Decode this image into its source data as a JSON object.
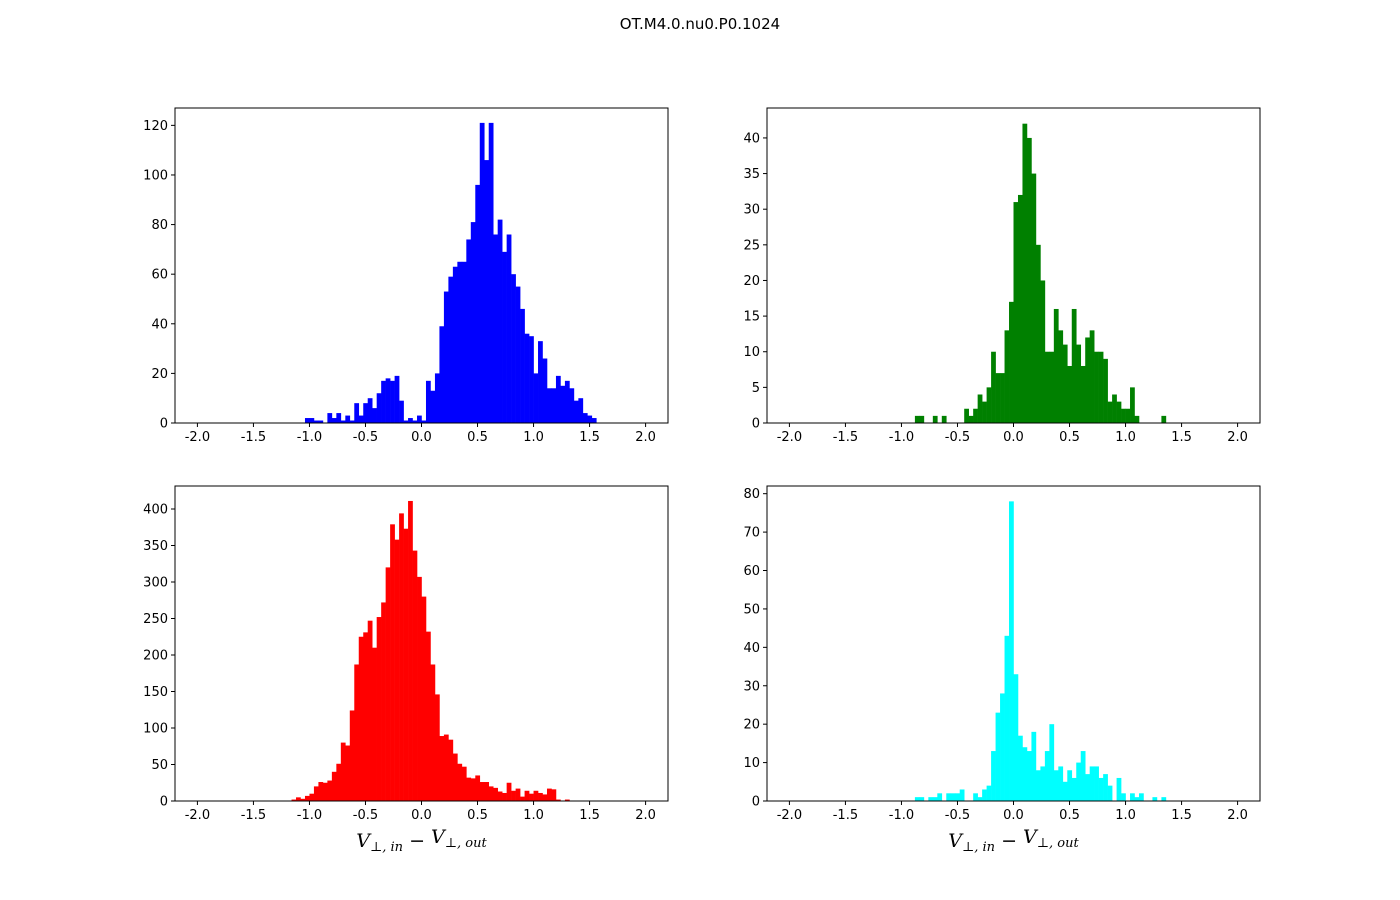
{
  "chart_data": [
    {
      "type": "bar",
      "subtype": "histogram",
      "position": "top-left",
      "color": "#0000ff",
      "bin_width": 0.04,
      "first_bin_left": -1.04,
      "counts": [
        2,
        2,
        1,
        1,
        0,
        4,
        2,
        4,
        1,
        3,
        1,
        8,
        3,
        8,
        10,
        6,
        12,
        17,
        18,
        17,
        19,
        9,
        1,
        2,
        1,
        3,
        1,
        17,
        13,
        20,
        39,
        53,
        59,
        63,
        65,
        65,
        74,
        81,
        96,
        121,
        106,
        121,
        76,
        82,
        69,
        76,
        60,
        55,
        46,
        36,
        35,
        20,
        33,
        26,
        14,
        14,
        19,
        15,
        17,
        14,
        9,
        10,
        4,
        3,
        2
      ],
      "xlim": [
        -2.2,
        2.2
      ],
      "ylim": [
        0,
        127
      ],
      "xticks": [
        "-2.0",
        "-1.5",
        "-1.0",
        "-0.5",
        "0.0",
        "0.5",
        "1.0",
        "1.5",
        "2.0"
      ],
      "yticks": [
        "0",
        "20",
        "40",
        "60",
        "80",
        "100",
        "120"
      ],
      "xlabel": ""
    },
    {
      "type": "bar",
      "subtype": "histogram",
      "position": "top-right",
      "color": "#008000",
      "bin_width": 0.04,
      "first_bin_left": -0.88,
      "counts": [
        1,
        1,
        0,
        0,
        1,
        0,
        1,
        0,
        0,
        0,
        0,
        2,
        1,
        2,
        4,
        3,
        5,
        10,
        7,
        7,
        13,
        17,
        31,
        32,
        42,
        40,
        35,
        25,
        20,
        10,
        10,
        16,
        13,
        11,
        8,
        16,
        11,
        8,
        12,
        13,
        10,
        10,
        9,
        3,
        4,
        3,
        2,
        2,
        5,
        1,
        0,
        0,
        0,
        0,
        0,
        1
      ],
      "xlim": [
        -2.2,
        2.2
      ],
      "ylim": [
        0,
        44.2
      ],
      "xticks": [
        "-2.0",
        "-1.5",
        "-1.0",
        "-0.5",
        "0.0",
        "0.5",
        "1.0",
        "1.5",
        "2.0"
      ],
      "yticks": [
        "0",
        "5",
        "10",
        "15",
        "20",
        "25",
        "30",
        "35",
        "40"
      ],
      "xlabel": ""
    },
    {
      "type": "bar",
      "subtype": "histogram",
      "position": "bottom-left",
      "color": "#ff0000",
      "bin_width": 0.04,
      "first_bin_left": -1.16,
      "counts": [
        2,
        5,
        3,
        7,
        10,
        20,
        26,
        25,
        28,
        40,
        51,
        80,
        76,
        124,
        187,
        225,
        231,
        247,
        210,
        252,
        272,
        320,
        379,
        358,
        394,
        373,
        411,
        343,
        307,
        280,
        232,
        187,
        146,
        89,
        91,
        84,
        65,
        51,
        47,
        32,
        31,
        35,
        26,
        26,
        20,
        18,
        13,
        11,
        25,
        14,
        17,
        6,
        14,
        10,
        14,
        11,
        9,
        17,
        16,
        2,
        0,
        2
      ],
      "xlim": [
        -2.2,
        2.2
      ],
      "ylim": [
        0,
        431.5
      ],
      "xticks": [
        "-2.0",
        "-1.5",
        "-1.0",
        "-0.5",
        "0.0",
        "0.5",
        "1.0",
        "1.5",
        "2.0"
      ],
      "yticks": [
        "0",
        "50",
        "100",
        "150",
        "200",
        "250",
        "300",
        "350",
        "400"
      ],
      "xlabel": {
        "v1": "V",
        "sub1": "⊥, in",
        "minus": " − ",
        "v2": "V",
        "sub2": "⊥, out"
      }
    },
    {
      "type": "bar",
      "subtype": "histogram",
      "position": "bottom-right",
      "color": "#00ffff",
      "bin_width": 0.04,
      "first_bin_left": -0.88,
      "counts": [
        1,
        1,
        0,
        1,
        1,
        2,
        0,
        2,
        2,
        2,
        3,
        0,
        0,
        2,
        1,
        3,
        4,
        13,
        23,
        28,
        43,
        78,
        33,
        17,
        14,
        13,
        18,
        8,
        9,
        13,
        20,
        8,
        9,
        5,
        8,
        6,
        10,
        13,
        7,
        9,
        9,
        6,
        7,
        4,
        0,
        6,
        2,
        0,
        2,
        1,
        2,
        0,
        0,
        1,
        0,
        1
      ],
      "xlim": [
        -2.2,
        2.2
      ],
      "ylim": [
        0,
        82
      ],
      "xticks": [
        "-2.0",
        "-1.5",
        "-1.0",
        "-0.5",
        "0.0",
        "0.5",
        "1.0",
        "1.5",
        "2.0"
      ],
      "yticks": [
        "0",
        "10",
        "20",
        "30",
        "40",
        "50",
        "60",
        "70",
        "80"
      ],
      "xlabel": {
        "v1": "V",
        "sub1": "⊥, in",
        "minus": " − ",
        "v2": "V",
        "sub2": "⊥, out"
      }
    }
  ],
  "title": "OT.M4.0.nu0.P0.1024"
}
